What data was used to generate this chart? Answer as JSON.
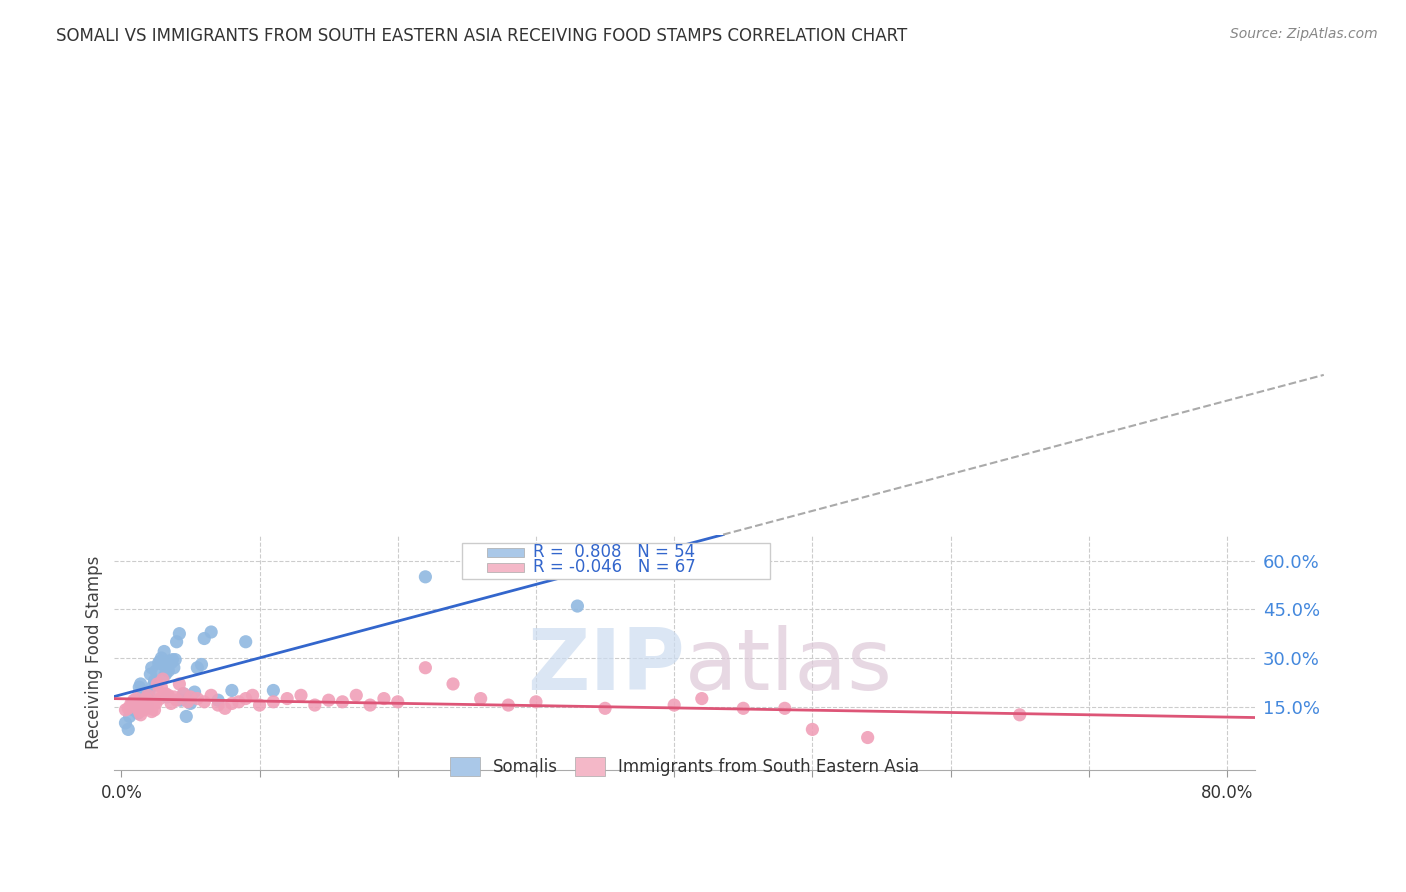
{
  "title": "SOMALI VS IMMIGRANTS FROM SOUTH EASTERN ASIA RECEIVING FOOD STAMPS CORRELATION CHART",
  "source": "Source: ZipAtlas.com",
  "ylabel": "Receiving Food Stamps",
  "ytick_vals": [
    0.15,
    0.3,
    0.45,
    0.6
  ],
  "xtick_vals": [
    0.0,
    0.1,
    0.2,
    0.3,
    0.4,
    0.5,
    0.6,
    0.7,
    0.8
  ],
  "xlim": [
    -0.005,
    0.82
  ],
  "ylim": [
    -0.045,
    0.68
  ],
  "somali_R": 0.808,
  "somali_N": 54,
  "sea_R": -0.046,
  "sea_N": 67,
  "somali_scatter_color": "#90b8e0",
  "sea_scatter_color": "#f0a0b8",
  "somali_line_color": "#3366cc",
  "sea_line_color": "#dd5577",
  "somali_legend_color": "#aac8e8",
  "sea_legend_color": "#f4b8c8",
  "legend_label_somali": "Somalis",
  "legend_label_sea": "Immigrants from South Eastern Asia",
  "background_color": "#ffffff",
  "grid_color": "#cccccc",
  "somali_x": [
    0.003,
    0.005,
    0.006,
    0.007,
    0.008,
    0.009,
    0.01,
    0.01,
    0.011,
    0.012,
    0.013,
    0.014,
    0.015,
    0.016,
    0.017,
    0.018,
    0.019,
    0.02,
    0.021,
    0.022,
    0.023,
    0.024,
    0.025,
    0.026,
    0.027,
    0.028,
    0.029,
    0.03,
    0.031,
    0.032,
    0.033,
    0.034,
    0.035,
    0.036,
    0.037,
    0.038,
    0.039,
    0.04,
    0.042,
    0.043,
    0.045,
    0.047,
    0.05,
    0.053,
    0.055,
    0.058,
    0.06,
    0.065,
    0.07,
    0.08,
    0.09,
    0.11,
    0.22,
    0.33
  ],
  "somali_y": [
    0.1,
    0.08,
    0.12,
    0.145,
    0.16,
    0.14,
    0.17,
    0.15,
    0.155,
    0.13,
    0.21,
    0.22,
    0.16,
    0.19,
    0.165,
    0.175,
    0.15,
    0.195,
    0.25,
    0.27,
    0.215,
    0.23,
    0.26,
    0.22,
    0.285,
    0.29,
    0.3,
    0.28,
    0.32,
    0.25,
    0.18,
    0.26,
    0.29,
    0.285,
    0.295,
    0.27,
    0.295,
    0.35,
    0.375,
    0.17,
    0.19,
    0.12,
    0.16,
    0.195,
    0.27,
    0.28,
    0.36,
    0.38,
    0.17,
    0.2,
    0.35,
    0.2,
    0.55,
    0.46
  ],
  "sea_x": [
    0.003,
    0.005,
    0.007,
    0.009,
    0.01,
    0.011,
    0.012,
    0.013,
    0.014,
    0.015,
    0.016,
    0.017,
    0.018,
    0.019,
    0.02,
    0.021,
    0.022,
    0.023,
    0.024,
    0.025,
    0.026,
    0.027,
    0.028,
    0.029,
    0.03,
    0.032,
    0.034,
    0.036,
    0.038,
    0.04,
    0.042,
    0.045,
    0.048,
    0.05,
    0.055,
    0.06,
    0.065,
    0.07,
    0.075,
    0.08,
    0.085,
    0.09,
    0.095,
    0.1,
    0.11,
    0.12,
    0.13,
    0.14,
    0.15,
    0.16,
    0.17,
    0.18,
    0.19,
    0.2,
    0.22,
    0.24,
    0.26,
    0.28,
    0.3,
    0.35,
    0.4,
    0.42,
    0.45,
    0.48,
    0.5,
    0.54,
    0.65
  ],
  "sea_y": [
    0.14,
    0.145,
    0.16,
    0.17,
    0.155,
    0.175,
    0.145,
    0.135,
    0.125,
    0.16,
    0.14,
    0.155,
    0.175,
    0.185,
    0.165,
    0.145,
    0.135,
    0.155,
    0.14,
    0.16,
    0.22,
    0.195,
    0.175,
    0.21,
    0.235,
    0.19,
    0.185,
    0.16,
    0.18,
    0.17,
    0.22,
    0.19,
    0.165,
    0.18,
    0.175,
    0.165,
    0.185,
    0.155,
    0.145,
    0.16,
    0.165,
    0.175,
    0.185,
    0.155,
    0.165,
    0.175,
    0.185,
    0.155,
    0.17,
    0.165,
    0.185,
    0.155,
    0.175,
    0.165,
    0.27,
    0.22,
    0.175,
    0.155,
    0.165,
    0.145,
    0.155,
    0.175,
    0.145,
    0.145,
    0.08,
    0.055,
    0.125
  ]
}
